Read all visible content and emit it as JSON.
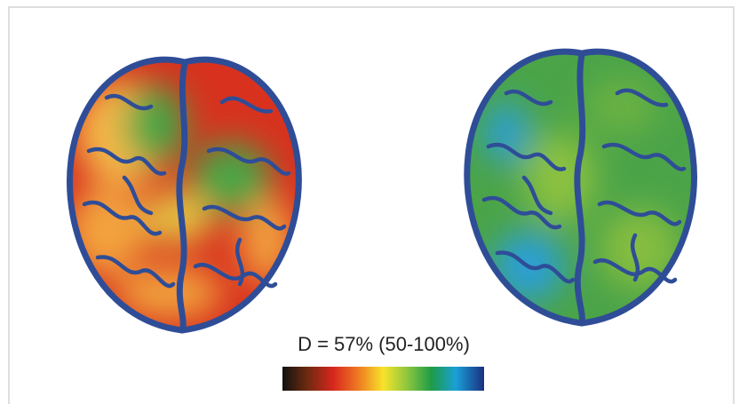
{
  "legend": {
    "label": "D = 57% (50-100%)"
  }
}
